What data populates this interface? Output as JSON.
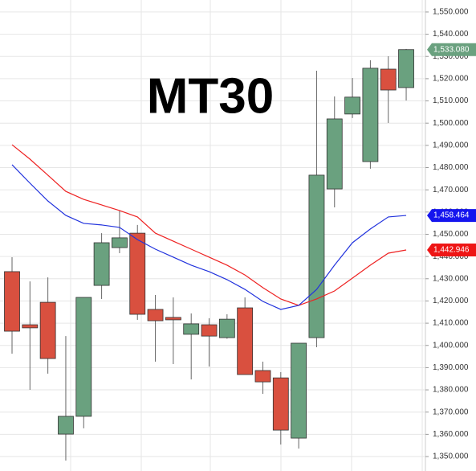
{
  "chart_data": {
    "type": "candlestick",
    "title": "MT30",
    "open": [
      1433.2,
      1409.3,
      1419.4,
      1360.1,
      1368.1,
      1427.0,
      1444.0,
      1450.5,
      1416.2,
      1412.6,
      1405.0,
      1409.3,
      1403.5,
      1416.9,
      1388.7,
      1385.4,
      1358.3,
      1403.5,
      1470.4,
      1504.1,
      1482.7,
      1524.3,
      1516.0
    ],
    "high": [
      1439.7,
      1428.8,
      1430.6,
      1404.2,
      1421.6,
      1450.5,
      1460.7,
      1454.2,
      1422.7,
      1421.6,
      1414.4,
      1412.2,
      1414.0,
      1421.6,
      1392.7,
      1388.0,
      1401.0,
      1523.6,
      1512.0,
      1520.3,
      1528.3,
      1530.1,
      1533.4
    ],
    "low": [
      1396.3,
      1380.0,
      1387.3,
      1348.2,
      1362.7,
      1420.9,
      1441.5,
      1411.5,
      1392.7,
      1391.6,
      1384.7,
      1390.5,
      1403.0,
      1386.9,
      1378.2,
      1355.4,
      1353.6,
      1399.2,
      1462.1,
      1502.3,
      1479.5,
      1500.1,
      1510.2
    ],
    "close": [
      1406.4,
      1407.9,
      1394.1,
      1368.1,
      1421.6,
      1446.2,
      1448.4,
      1414.0,
      1411.1,
      1411.5,
      1409.7,
      1404.2,
      1411.8,
      1386.9,
      1383.6,
      1361.9,
      1401.0,
      1476.6,
      1501.9,
      1511.7,
      1524.7,
      1514.9,
      1533.08
    ],
    "up_color": "#6aa17f",
    "down_color": "#d9503f",
    "lines": [
      {
        "color": "#ee2222",
        "values": [
          1490.3,
          1483.8,
          1476.6,
          1469.3,
          1465.7,
          1463.2,
          1460.7,
          1457.8,
          1450.5,
          1446.9,
          1443.3,
          1439.7,
          1436.1,
          1431.7,
          1426.0,
          1420.9,
          1418.0,
          1420.9,
          1424.5,
          1430.3,
          1436.1,
          1441.5,
          1442.946
        ]
      },
      {
        "color": "#2233dd",
        "values": [
          1481.3,
          1473.0,
          1465.0,
          1458.5,
          1454.9,
          1454.2,
          1453.1,
          1447.6,
          1443.3,
          1439.7,
          1436.1,
          1433.2,
          1429.6,
          1425.2,
          1419.8,
          1416.2,
          1418.0,
          1425.2,
          1436.1,
          1446.2,
          1452.4,
          1457.8,
          1458.464
        ]
      }
    ],
    "price_labels": [
      {
        "value": 1533.08,
        "label": "1,533.080",
        "color": "#6aa17f"
      },
      {
        "value": 1458.464,
        "label": "1,458.464",
        "color": "#1515ee"
      },
      {
        "value": 1442.946,
        "label": "1,442.946",
        "color": "#ee1515"
      }
    ],
    "ylim": [
      1343.5,
      1555.4
    ],
    "yticks": [
      {
        "value": 1350,
        "label": "1,350.000"
      },
      {
        "value": 1360,
        "label": "1,360.000"
      },
      {
        "value": 1370,
        "label": "1,370.000"
      },
      {
        "value": 1380,
        "label": "1,380.000"
      },
      {
        "value": 1390,
        "label": "1,390.000"
      },
      {
        "value": 1400,
        "label": "1,400.000"
      },
      {
        "value": 1410,
        "label": "1,410.000"
      },
      {
        "value": 1420,
        "label": "1,420.000"
      },
      {
        "value": 1430,
        "label": "1,430.000"
      },
      {
        "value": 1440,
        "label": "1,440.000"
      },
      {
        "value": 1450,
        "label": "1,450.000"
      },
      {
        "value": 1460,
        "label": "1,460.000"
      },
      {
        "value": 1470,
        "label": "1,470.000"
      },
      {
        "value": 1480,
        "label": "1,480.000"
      },
      {
        "value": 1490,
        "label": "1,490.000"
      },
      {
        "value": 1500,
        "label": "1,500.000"
      },
      {
        "value": 1510,
        "label": "1,510.000"
      },
      {
        "value": 1520,
        "label": "1,520.000"
      },
      {
        "value": 1530,
        "label": "1,530.000"
      },
      {
        "value": 1540,
        "label": "1,540.000"
      },
      {
        "value": 1550,
        "label": "1,550.000"
      }
    ],
    "grid": true
  }
}
